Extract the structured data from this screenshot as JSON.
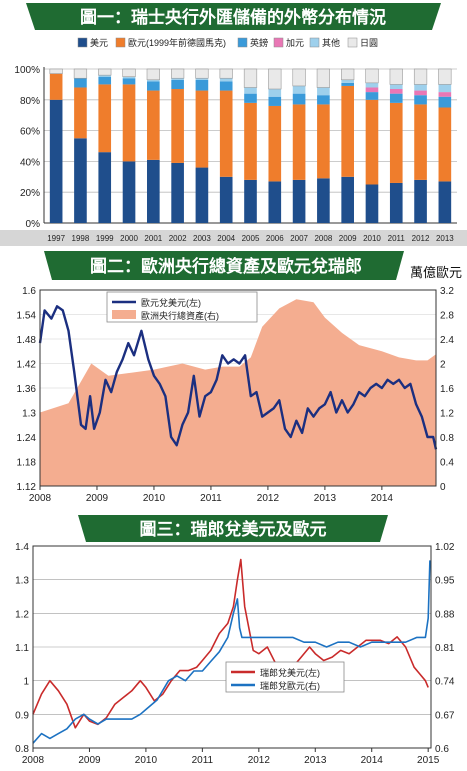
{
  "chart_data": [
    {
      "type": "bar",
      "title": "圖一：瑞士央行外匯儲備的外幣分布情況",
      "categories": [
        "1997",
        "1998",
        "1999",
        "2000",
        "2001",
        "2002",
        "2003",
        "2004",
        "2005",
        "2006",
        "2007",
        "2008",
        "2009",
        "2010",
        "2011",
        "2012",
        "2013"
      ],
      "ylim": [
        0,
        100
      ],
      "yticks": [
        "0%",
        "20%",
        "40%",
        "60%",
        "80%",
        "100%"
      ],
      "legend_position": "top",
      "series": [
        {
          "name": "美元",
          "color": "#1f4e8c",
          "values": [
            80,
            55,
            46,
            40,
            41,
            39,
            36,
            30,
            28,
            27,
            28,
            29,
            30,
            25,
            26,
            28,
            27
          ]
        },
        {
          "name": "歐元(1999年前德國馬克)",
          "color": "#ef7d2c",
          "values": [
            17,
            33,
            44,
            50,
            45,
            48,
            50,
            56,
            50,
            49,
            49,
            48,
            59,
            55,
            52,
            49,
            48
          ]
        },
        {
          "name": "英鎊",
          "color": "#3a9ad9",
          "values": [
            0,
            6,
            5,
            4,
            6,
            6,
            7,
            6,
            6,
            6,
            7,
            6,
            2,
            5,
            6,
            6,
            7
          ]
        },
        {
          "name": "加元",
          "color": "#e977b5",
          "values": [
            0,
            0,
            0,
            0,
            0,
            0,
            0,
            0,
            0,
            0,
            0,
            0,
            0,
            3,
            3,
            3,
            3
          ]
        },
        {
          "name": "其他",
          "color": "#9ed0ec",
          "values": [
            0,
            0,
            1,
            1,
            1,
            1,
            1,
            2,
            4,
            5,
            5,
            5,
            2,
            3,
            3,
            4,
            5
          ]
        },
        {
          "name": "日圓",
          "color": "#e9e9e9",
          "values": [
            3,
            6,
            4,
            5,
            7,
            6,
            6,
            6,
            12,
            13,
            11,
            12,
            7,
            9,
            10,
            10,
            10
          ]
        }
      ]
    },
    {
      "type": "line",
      "title": "圖二：歐洲央行總資產及歐元兌瑞郎",
      "unit_label": "萬億歐元",
      "xticks": [
        "2008",
        "2009",
        "2010",
        "2011",
        "2012",
        "2013",
        "2014"
      ],
      "xlim": [
        2008.0,
        2014.95
      ],
      "ylim_left": [
        1.12,
        1.6
      ],
      "yticks_left": [
        "1.6",
        "1.54",
        "1.48",
        "1.42",
        "1.36",
        "1.3",
        "1.24",
        "1.18",
        "1.12"
      ],
      "ylim_right": [
        0,
        3.2
      ],
      "yticks_right": [
        "3.2",
        "2.8",
        "2.4",
        "2",
        "1.6",
        "1.2",
        "0.8",
        "0.4",
        "0"
      ],
      "legend_position": "top-center",
      "series": [
        {
          "name": "歐元兌美元(左)",
          "axis": "left",
          "color": "#1b2f80",
          "x": [
            2008.0,
            2008.08,
            2008.2,
            2008.3,
            2008.4,
            2008.5,
            2008.6,
            2008.72,
            2008.8,
            2008.88,
            2008.95,
            2009.05,
            2009.15,
            2009.25,
            2009.35,
            2009.45,
            2009.55,
            2009.65,
            2009.78,
            2009.9,
            2010.0,
            2010.1,
            2010.2,
            2010.3,
            2010.4,
            2010.5,
            2010.6,
            2010.7,
            2010.8,
            2010.9,
            2011.0,
            2011.1,
            2011.2,
            2011.3,
            2011.4,
            2011.5,
            2011.6,
            2011.7,
            2011.8,
            2011.9,
            2012.0,
            2012.1,
            2012.2,
            2012.3,
            2012.4,
            2012.5,
            2012.6,
            2012.7,
            2012.8,
            2012.9,
            2013.0,
            2013.1,
            2013.2,
            2013.3,
            2013.4,
            2013.5,
            2013.6,
            2013.7,
            2013.8,
            2013.9,
            2014.0,
            2014.1,
            2014.2,
            2014.3,
            2014.4,
            2014.5,
            2014.6,
            2014.7,
            2014.8,
            2014.9,
            2014.95
          ],
          "y": [
            1.47,
            1.55,
            1.53,
            1.56,
            1.55,
            1.5,
            1.4,
            1.27,
            1.26,
            1.34,
            1.26,
            1.3,
            1.38,
            1.35,
            1.4,
            1.43,
            1.47,
            1.44,
            1.5,
            1.43,
            1.39,
            1.37,
            1.34,
            1.24,
            1.22,
            1.27,
            1.3,
            1.39,
            1.29,
            1.34,
            1.35,
            1.38,
            1.44,
            1.42,
            1.43,
            1.42,
            1.44,
            1.34,
            1.35,
            1.29,
            1.3,
            1.31,
            1.33,
            1.26,
            1.24,
            1.28,
            1.25,
            1.31,
            1.29,
            1.31,
            1.32,
            1.35,
            1.3,
            1.33,
            1.3,
            1.32,
            1.35,
            1.34,
            1.36,
            1.37,
            1.36,
            1.38,
            1.37,
            1.38,
            1.36,
            1.37,
            1.32,
            1.29,
            1.24,
            1.24,
            1.21
          ]
        },
        {
          "name": "歐洲央行總資產(右)",
          "axis": "right",
          "color": "#f4ad90",
          "x": [
            2008.0,
            2008.5,
            2008.9,
            2009.2,
            2009.6,
            2010.0,
            2010.5,
            2010.9,
            2011.2,
            2011.5,
            2011.7,
            2011.9,
            2012.2,
            2012.5,
            2012.8,
            2013.0,
            2013.3,
            2013.6,
            2014.0,
            2014.3,
            2014.6,
            2014.8,
            2014.95
          ],
          "y": [
            1.2,
            1.35,
            2.0,
            1.8,
            1.85,
            1.9,
            2.0,
            1.9,
            1.95,
            1.95,
            2.1,
            2.6,
            2.9,
            3.05,
            3.0,
            2.75,
            2.5,
            2.3,
            2.2,
            2.1,
            2.05,
            2.05,
            2.15
          ]
        }
      ]
    },
    {
      "type": "line",
      "title": "圖三：瑞郎兌美元及歐元",
      "xticks": [
        "2008",
        "2009",
        "2010",
        "2011",
        "2012",
        "2013",
        "2014",
        "2015"
      ],
      "xlim": [
        2008.0,
        2015.05
      ],
      "ylim_left": [
        0.8,
        1.4
      ],
      "yticks_left": [
        "1.4",
        "1.3",
        "1.2",
        "1.1",
        "1",
        "0.9",
        "0.8"
      ],
      "ylim_right": [
        0.6,
        1.02
      ],
      "yticks_right": [
        "1.02",
        "0.95",
        "0.88",
        "0.81",
        "0.74",
        "0.67",
        "0.6"
      ],
      "legend_position": "bottom-right",
      "series": [
        {
          "name": "瑞郎兌美元(左)",
          "axis": "left",
          "color": "#c92b2b",
          "x": [
            2008.0,
            2008.15,
            2008.3,
            2008.45,
            2008.6,
            2008.75,
            2008.9,
            2009.0,
            2009.15,
            2009.3,
            2009.45,
            2009.6,
            2009.75,
            2009.9,
            2010.0,
            2010.15,
            2010.3,
            2010.45,
            2010.6,
            2010.75,
            2010.9,
            2011.0,
            2011.15,
            2011.3,
            2011.45,
            2011.55,
            2011.62,
            2011.68,
            2011.75,
            2011.9,
            2012.0,
            2012.15,
            2012.3,
            2012.45,
            2012.6,
            2012.75,
            2012.9,
            2013.0,
            2013.15,
            2013.3,
            2013.45,
            2013.6,
            2013.75,
            2013.9,
            2014.0,
            2014.15,
            2014.3,
            2014.45,
            2014.6,
            2014.75,
            2014.85,
            2014.95,
            2015.0
          ],
          "y": [
            0.9,
            0.96,
            1.0,
            0.97,
            0.93,
            0.86,
            0.9,
            0.88,
            0.87,
            0.89,
            0.93,
            0.95,
            0.97,
            1.0,
            0.98,
            0.94,
            0.96,
            1.0,
            1.03,
            1.03,
            1.04,
            1.06,
            1.09,
            1.14,
            1.17,
            1.22,
            1.3,
            1.36,
            1.22,
            1.09,
            1.08,
            1.1,
            1.05,
            1.02,
            1.04,
            1.07,
            1.1,
            1.08,
            1.06,
            1.07,
            1.09,
            1.08,
            1.1,
            1.12,
            1.12,
            1.12,
            1.11,
            1.13,
            1.1,
            1.04,
            1.02,
            1.0,
            0.98
          ]
        },
        {
          "name": "瑞郎兌歐元(右)",
          "axis": "right",
          "color": "#1c72c2",
          "x": [
            2008.0,
            2008.15,
            2008.3,
            2008.45,
            2008.6,
            2008.75,
            2008.9,
            2009.0,
            2009.15,
            2009.3,
            2009.45,
            2009.6,
            2009.75,
            2009.9,
            2010.0,
            2010.2,
            2010.4,
            2010.55,
            2010.7,
            2010.85,
            2011.0,
            2011.15,
            2011.3,
            2011.45,
            2011.55,
            2011.62,
            2011.66,
            2011.7,
            2011.8,
            2012.0,
            2012.2,
            2012.4,
            2012.6,
            2012.8,
            2013.0,
            2013.2,
            2013.4,
            2013.6,
            2013.8,
            2014.0,
            2014.2,
            2014.4,
            2014.6,
            2014.8,
            2014.95,
            2015.0,
            2015.03
          ],
          "y": [
            0.61,
            0.63,
            0.62,
            0.63,
            0.64,
            0.66,
            0.67,
            0.66,
            0.65,
            0.66,
            0.66,
            0.66,
            0.66,
            0.67,
            0.68,
            0.7,
            0.74,
            0.75,
            0.74,
            0.76,
            0.76,
            0.78,
            0.8,
            0.83,
            0.88,
            0.91,
            0.85,
            0.83,
            0.83,
            0.83,
            0.83,
            0.83,
            0.83,
            0.82,
            0.82,
            0.81,
            0.82,
            0.82,
            0.81,
            0.82,
            0.82,
            0.82,
            0.82,
            0.83,
            0.83,
            0.87,
            0.99
          ]
        }
      ]
    }
  ]
}
